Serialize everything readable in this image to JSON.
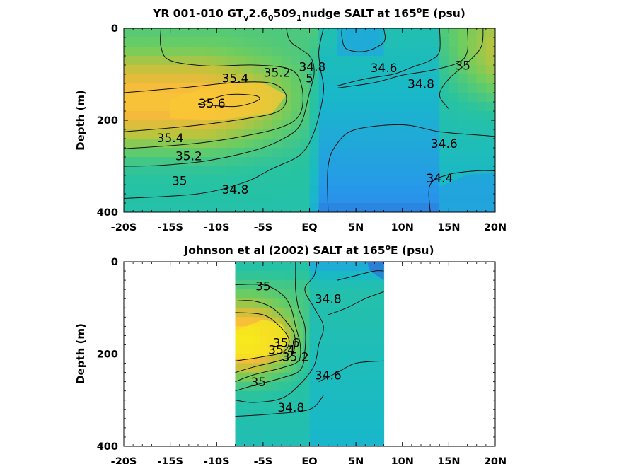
{
  "chart_data": [
    {
      "type": "heatmap",
      "subtype": "filled-contour",
      "title_parts": {
        "a": "YR 001-010 GT",
        "b": "v",
        "c": "2.6",
        "d": "0",
        "e": "509",
        "f": "1",
        "g": "nudge SALT at 165",
        "h": "o",
        "i": "E (psu)"
      },
      "ylabel": "Depth (m)",
      "xlim": [
        -20,
        20
      ],
      "ylim": [
        0,
        400
      ],
      "y_reversed": true,
      "colormap": "parula",
      "x_ticks": [
        -20,
        -15,
        -10,
        -5,
        0,
        5,
        10,
        15,
        20
      ],
      "x_tick_labels": [
        "-20S",
        "-15S",
        "-10S",
        "-5S",
        "EQ",
        "5N",
        "10N",
        "15N",
        "20N"
      ],
      "y_ticks": [
        0,
        200,
        400
      ],
      "y_tick_labels": [
        "0",
        "200",
        "400"
      ],
      "data_extent_x": [
        -20,
        20
      ],
      "contours": [
        {
          "level": 35.6,
          "label": "35.6",
          "points": [
            [
              -12,
              165
            ],
            [
              -9,
              145
            ],
            [
              -6,
              146
            ],
            [
              -5.5,
              156
            ],
            [
              -8,
              170
            ],
            [
              -12,
              165
            ]
          ]
        },
        {
          "level": 35.4,
          "label": "35.4",
          "points": [
            [
              -20,
              225
            ],
            [
              -13,
              213
            ],
            [
              -8,
              200
            ],
            [
              -3.5,
              182
            ],
            [
              -2.5,
              148
            ],
            [
              -4,
              120
            ],
            [
              -8,
              118
            ],
            [
              -13,
              128
            ],
            [
              -17,
              135
            ],
            [
              -20,
              140
            ]
          ]
        },
        {
          "level": 35.2,
          "label": "35.2",
          "points": [
            [
              -20,
              262
            ],
            [
              -13,
              252
            ],
            [
              -8,
              238
            ],
            [
              -3,
              215
            ],
            [
              -1,
              185
            ],
            [
              -0.8,
              130
            ],
            [
              -2,
              90
            ],
            [
              -6,
              80
            ],
            [
              -11,
              82
            ],
            [
              -15,
              70
            ],
            [
              -16,
              40
            ],
            [
              -16,
              0
            ]
          ]
        },
        {
          "level": 35.0,
          "label": "35",
          "points": [
            [
              -20,
              300
            ],
            [
              -16,
              298
            ],
            [
              -11,
              288
            ],
            [
              -6,
              266
            ],
            [
              -3,
              242
            ],
            [
              -1,
              210
            ],
            [
              0,
              140
            ],
            [
              0.5,
              95
            ],
            [
              0,
              60
            ],
            [
              -2,
              30
            ],
            [
              -2.5,
              0
            ]
          ]
        },
        {
          "level": 34.8,
          "label": "34.8",
          "points": [
            [
              -20,
              370
            ],
            [
              -12,
              360
            ],
            [
              -7,
              335
            ],
            [
              -4,
              305
            ],
            [
              -1,
              275
            ],
            [
              0.5,
              225
            ],
            [
              1.5,
              140
            ],
            [
              1.2,
              90
            ],
            [
              1,
              50
            ],
            [
              1.5,
              0
            ]
          ]
        },
        {
          "level": 34.8,
          "label": "34.8",
          "points": [
            [
              3,
              130
            ],
            [
              7,
              118
            ],
            [
              10,
              102
            ],
            [
              13,
              92
            ],
            [
              16,
              75
            ],
            [
              17,
              50
            ],
            [
              17,
              0
            ]
          ]
        },
        {
          "level": 35.0,
          "label": "35",
          "points": [
            [
              15,
              175
            ],
            [
              14,
              145
            ],
            [
              15,
              110
            ],
            [
              17,
              75
            ],
            [
              18.5,
              40
            ],
            [
              18.7,
              0
            ]
          ]
        },
        {
          "level": 34.6,
          "label": "34.6",
          "points": [
            [
              2,
              400
            ],
            [
              2,
              300
            ],
            [
              3,
              250
            ],
            [
              5,
              220
            ],
            [
              10,
              210
            ],
            [
              14,
              225
            ],
            [
              18,
              232
            ],
            [
              20,
              235
            ]
          ]
        },
        {
          "level": 34.6,
          "label": "34.6",
          "points": [
            [
              3,
              125
            ],
            [
              6,
              110
            ],
            [
              9,
              100
            ],
            [
              11,
              85
            ],
            [
              13,
              70
            ],
            [
              14,
              50
            ],
            [
              14,
              0
            ]
          ]
        },
        {
          "level": 34.6,
          "label": "34.6",
          "points": [
            [
              8,
              0
            ],
            [
              8,
              30
            ],
            [
              6,
              50
            ],
            [
              4,
              45
            ],
            [
              3.5,
              20
            ],
            [
              3.5,
              0
            ]
          ]
        },
        {
          "level": 34.4,
          "label": "34.4",
          "points": [
            [
              13,
              400
            ],
            [
              13,
              340
            ],
            [
              15,
              318
            ],
            [
              18,
              310
            ],
            [
              20,
              310
            ]
          ]
        }
      ],
      "colorfill": [
        {
          "value": 35.55,
          "points": [
            [
              -15,
              155
            ],
            [
              -10,
              120
            ],
            [
              -5,
              118
            ],
            [
              -2.5,
              145
            ],
            [
              -4,
              185
            ],
            [
              -10,
              200
            ],
            [
              -15,
              195
            ]
          ]
        },
        {
          "value": 34.45,
          "points": [
            [
              3.8,
              0
            ],
            [
              7.5,
              0
            ],
            [
              7.5,
              25
            ],
            [
              6,
              48
            ],
            [
              4.2,
              42
            ]
          ]
        },
        {
          "value": 34.4,
          "points": [
            [
              14,
              400
            ],
            [
              14,
              345
            ],
            [
              17,
              318
            ],
            [
              20,
              315
            ],
            [
              20,
              400
            ]
          ]
        }
      ],
      "contour_labels": [
        {
          "text": "35.4",
          "x": -8,
          "y": 118
        },
        {
          "text": "35.2",
          "x": -3.5,
          "y": 105
        },
        {
          "text": "35.6",
          "x": -10.5,
          "y": 172
        },
        {
          "text": "35.4",
          "x": -15,
          "y": 248
        },
        {
          "text": "35.2",
          "x": -13,
          "y": 287
        },
        {
          "text": "35",
          "x": -14,
          "y": 341
        },
        {
          "text": "34.8",
          "x": -8,
          "y": 360
        },
        {
          "text": "34.8",
          "x": 0.3,
          "y": 93
        },
        {
          "text": "5",
          "x": 0,
          "y": 118
        },
        {
          "text": "34.6",
          "x": 8,
          "y": 95
        },
        {
          "text": "34.8",
          "x": 12,
          "y": 130
        },
        {
          "text": "35",
          "x": 16.5,
          "y": 90
        },
        {
          "text": "34.6",
          "x": 14.5,
          "y": 260
        },
        {
          "text": "34.4",
          "x": 14,
          "y": 335
        }
      ]
    },
    {
      "type": "heatmap",
      "subtype": "filled-contour",
      "title_parts": {
        "a": "Johnson et al (2002) SALT at 165",
        "b": "o",
        "c": "E (psu)"
      },
      "ylabel": "Depth (m)",
      "xlim": [
        -20,
        20
      ],
      "ylim": [
        0,
        400
      ],
      "y_reversed": true,
      "colormap": "parula",
      "x_ticks": [
        -20,
        -15,
        -10,
        -5,
        0,
        5,
        10,
        15,
        20
      ],
      "x_tick_labels": [
        "-20S",
        "-15S",
        "-10S",
        "-5S",
        "EQ",
        "5N",
        "10N",
        "15N",
        "20N"
      ],
      "y_ticks": [
        0,
        200,
        400
      ],
      "y_tick_labels": [
        "0",
        "200",
        "400"
      ],
      "data_extent_x": [
        -8,
        8
      ],
      "contours": [
        {
          "level": 34.8,
          "label": "34.8",
          "points": [
            [
              -8,
              300
            ],
            [
              -6,
              305
            ],
            [
              -3,
              296
            ],
            [
              -1,
              265
            ],
            [
              0.5,
              225
            ],
            [
              1,
              180
            ],
            [
              1.5,
              140
            ],
            [
              0.5,
              100
            ],
            [
              -0.5,
              60
            ],
            [
              0.5,
              30
            ],
            [
              0.8,
              0
            ]
          ]
        },
        {
          "level": 35.0,
          "label": "35",
          "points": [
            [
              -8,
              280
            ],
            [
              -6,
              268
            ],
            [
              -3,
              252
            ],
            [
              -1,
              235
            ],
            [
              -0.5,
              195
            ],
            [
              -0.5,
              140
            ],
            [
              -1.2,
              100
            ],
            [
              -1.5,
              60
            ],
            [
              -1.5,
              30
            ],
            [
              -1.5,
              0
            ]
          ]
        },
        {
          "level": 35.2,
          "label": "35.2",
          "points": [
            [
              -8,
              260
            ],
            [
              -6,
              245
            ],
            [
              -3,
              230
            ],
            [
              -1.2,
              215
            ],
            [
              -1,
              180
            ],
            [
              -1.5,
              140
            ],
            [
              -2,
              100
            ],
            [
              -3,
              70
            ],
            [
              -5,
              50
            ],
            [
              -8,
              50
            ]
          ]
        },
        {
          "level": 35.4,
          "label": "35.4",
          "points": [
            [
              -8,
              240
            ],
            [
              -6,
              228
            ],
            [
              -3,
              213
            ],
            [
              -1.8,
              200
            ],
            [
              -1.6,
              160
            ],
            [
              -2.5,
              130
            ],
            [
              -4,
              100
            ],
            [
              -6,
              85
            ],
            [
              -8,
              85
            ]
          ]
        },
        {
          "level": 35.6,
          "label": "35.6",
          "points": [
            [
              -8,
              215
            ],
            [
              -5,
              206
            ],
            [
              -2.8,
              195
            ],
            [
              -2.2,
              170
            ],
            [
              -3.2,
              140
            ],
            [
              -5,
              115
            ],
            [
              -8,
              110
            ]
          ]
        },
        {
          "level": 34.8,
          "label": "34.8",
          "points": [
            [
              2,
              115
            ],
            [
              4,
              100
            ],
            [
              6,
              80
            ],
            [
              8,
              65
            ]
          ]
        },
        {
          "level": 34.6,
          "label": "34.6",
          "points": [
            [
              1,
              260
            ],
            [
              3,
              240
            ],
            [
              5,
              220
            ],
            [
              8,
              215
            ]
          ]
        },
        {
          "level": 34.6,
          "label": "34.6",
          "points": [
            [
              3,
              40
            ],
            [
              5,
              30
            ],
            [
              7,
              20
            ],
            [
              8,
              20
            ]
          ]
        },
        {
          "level": 34.8,
          "label": "34.8",
          "points": [
            [
              -8,
              335
            ],
            [
              -4,
              330
            ],
            [
              0,
              320
            ],
            [
              1.5,
              290
            ]
          ]
        }
      ],
      "colorfill": [
        {
          "value": 35.75,
          "points": [
            [
              -8,
              150
            ],
            [
              -5,
              125
            ],
            [
              -3,
              135
            ],
            [
              -2.2,
              165
            ],
            [
              -3,
              195
            ],
            [
              -6,
              210
            ],
            [
              -8,
              210
            ]
          ]
        },
        {
          "value": 34.3,
          "points": [
            [
              6.2,
              0
            ],
            [
              8,
              0
            ],
            [
              8,
              40
            ],
            [
              6.5,
              20
            ]
          ]
        }
      ],
      "contour_labels": [
        {
          "text": "35",
          "x": -5,
          "y": 62
        },
        {
          "text": "34.8",
          "x": 2,
          "y": 90
        },
        {
          "text": "35.6",
          "x": -2.5,
          "y": 185
        },
        {
          "text": "35.4",
          "x": -3,
          "y": 200
        },
        {
          "text": "35.2",
          "x": -1.5,
          "y": 215
        },
        {
          "text": "35",
          "x": -5.5,
          "y": 270
        },
        {
          "text": "34.6",
          "x": 2,
          "y": 255
        },
        {
          "text": "34.8",
          "x": -2,
          "y": 325
        }
      ]
    }
  ]
}
